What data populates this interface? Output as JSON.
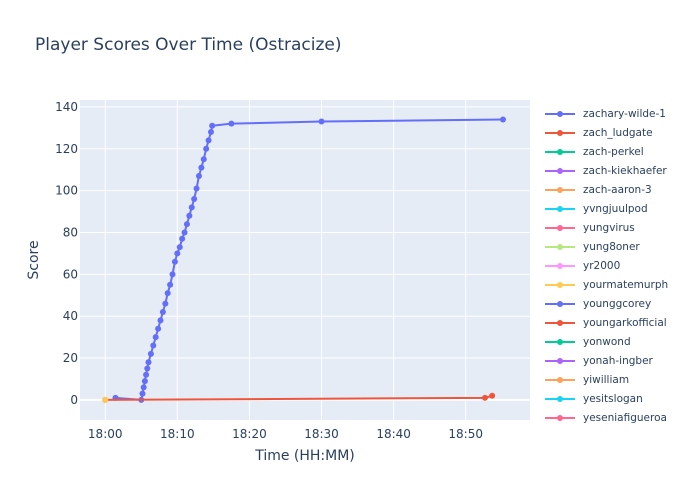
{
  "chart_data": {
    "type": "line",
    "title": "Player Scores Over Time (Ostracize)",
    "xlabel": "Time (HH:MM)",
    "ylabel": "Score",
    "xlim": [
      "17:56:30",
      "18:58:55"
    ],
    "ylim": [
      -9.6,
      143.3
    ],
    "xticks": [
      "18:00",
      "18:10",
      "18:20",
      "18:30",
      "18:40",
      "18:50"
    ],
    "yticks": [
      0,
      20,
      40,
      60,
      80,
      100,
      120,
      140
    ],
    "grid": true,
    "legend_position": "right",
    "plot_bg": "#e5ecf6",
    "series": [
      {
        "name": "zachary-wilde-1",
        "color": "#636efa",
        "points": [
          [
            "18:01:25",
            1
          ],
          [
            "18:05:00",
            0
          ],
          [
            "18:05:10",
            3
          ],
          [
            "18:05:20",
            6
          ],
          [
            "18:05:30",
            9
          ],
          [
            "18:05:40",
            12
          ],
          [
            "18:05:50",
            15
          ],
          [
            "18:06:00",
            18
          ],
          [
            "18:06:20",
            22
          ],
          [
            "18:06:40",
            26
          ],
          [
            "18:07:00",
            30
          ],
          [
            "18:07:20",
            34
          ],
          [
            "18:07:40",
            38
          ],
          [
            "18:08:00",
            42
          ],
          [
            "18:08:20",
            46
          ],
          [
            "18:08:40",
            51
          ],
          [
            "18:09:00",
            55
          ],
          [
            "18:09:20",
            60
          ],
          [
            "18:09:40",
            66
          ],
          [
            "18:10:00",
            70
          ],
          [
            "18:10:20",
            73
          ],
          [
            "18:10:40",
            77
          ],
          [
            "18:11:00",
            80
          ],
          [
            "18:11:20",
            84
          ],
          [
            "18:11:40",
            88
          ],
          [
            "18:12:00",
            92
          ],
          [
            "18:12:20",
            96
          ],
          [
            "18:12:40",
            101
          ],
          [
            "18:13:00",
            107
          ],
          [
            "18:13:20",
            111
          ],
          [
            "18:13:40",
            115
          ],
          [
            "18:14:00",
            120
          ],
          [
            "18:14:20",
            124
          ],
          [
            "18:14:40",
            128
          ],
          [
            "18:14:50",
            131
          ],
          [
            "18:17:30",
            132
          ],
          [
            "18:30:00",
            133
          ],
          [
            "18:55:10",
            134
          ]
        ]
      },
      {
        "name": "zach_ludgate",
        "color": "#ef553b",
        "points": [
          [
            "18:00:00",
            0
          ],
          [
            "18:52:40",
            1
          ],
          [
            "18:53:40",
            2
          ]
        ]
      },
      {
        "name": "zach-perkel",
        "color": "#00cc96",
        "points": []
      },
      {
        "name": "zach-kiekhaefer",
        "color": "#ab63fa",
        "points": []
      },
      {
        "name": "zach-aaron-3",
        "color": "#ffa15a",
        "points": []
      },
      {
        "name": "yvngjuulpod",
        "color": "#19d3f3",
        "points": []
      },
      {
        "name": "yungvirus",
        "color": "#ff6692",
        "points": []
      },
      {
        "name": "yung8oner",
        "color": "#b6e880",
        "points": []
      },
      {
        "name": "yr2000",
        "color": "#ff97ff",
        "points": []
      },
      {
        "name": "yourmatemurph",
        "color": "#fecb52",
        "points": [
          [
            "18:00:00",
            0
          ]
        ]
      },
      {
        "name": "younggcorey",
        "color": "#636efa",
        "points": []
      },
      {
        "name": "youngarkofficial",
        "color": "#ef553b",
        "points": []
      },
      {
        "name": "yonwond",
        "color": "#00cc96",
        "points": []
      },
      {
        "name": "yonah-ingber",
        "color": "#ab63fa",
        "points": []
      },
      {
        "name": "yiwilliam",
        "color": "#ffa15a",
        "points": []
      },
      {
        "name": "yesitslogan",
        "color": "#19d3f3",
        "points": []
      },
      {
        "name": "yeseniafigueroa",
        "color": "#ff6692",
        "points": []
      }
    ]
  }
}
